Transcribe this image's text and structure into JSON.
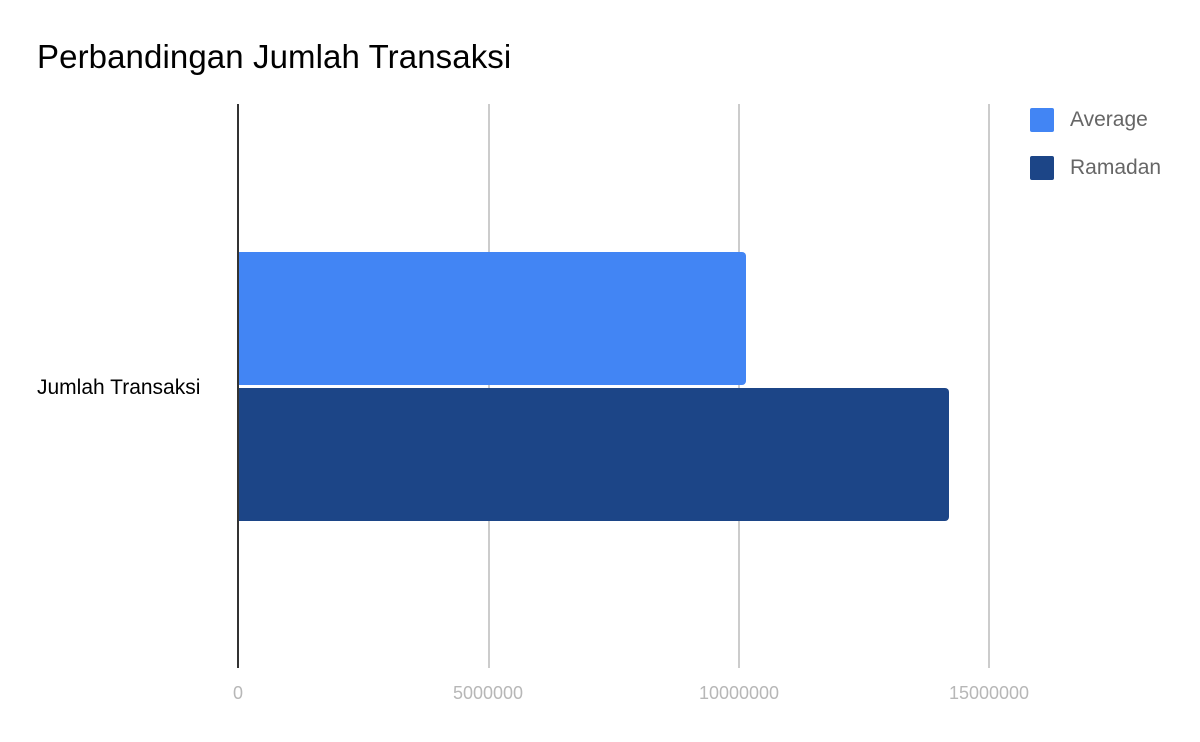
{
  "chart_data": {
    "type": "bar",
    "orientation": "horizontal",
    "title": "Perbandingan Jumlah Transaksi",
    "categories": [
      "Jumlah Transaksi"
    ],
    "series": [
      {
        "name": "Average",
        "values": [
          10150000
        ],
        "color": "#4285f4"
      },
      {
        "name": "Ramadan",
        "values": [
          14220000
        ],
        "color": "#1c4587"
      }
    ],
    "xlabel": "",
    "ylabel": "",
    "xlim": [
      0,
      16000000
    ],
    "x_ticks": [
      "0",
      "5000000",
      "10000000",
      "15000000"
    ],
    "grid": true,
    "legend_position": "right"
  }
}
